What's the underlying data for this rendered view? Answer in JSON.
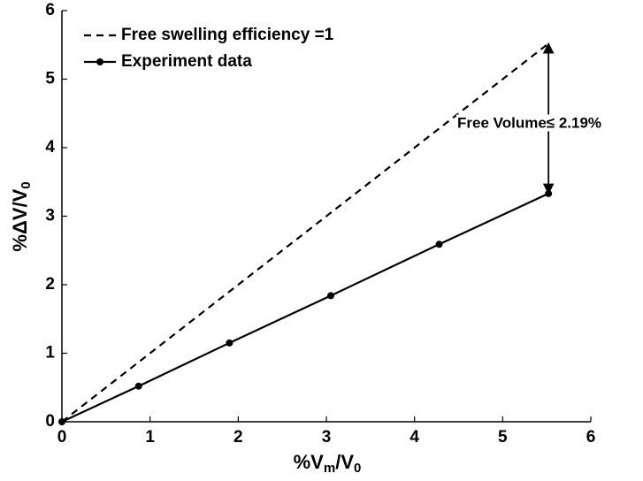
{
  "chart_data": {
    "type": "line",
    "xlabel": [
      "%V",
      "m",
      "/V",
      "0"
    ],
    "ylabel": [
      "%ΔV/V",
      "0"
    ],
    "xlim": [
      0,
      6
    ],
    "ylim": [
      0,
      6
    ],
    "xticks": [
      0,
      1,
      2,
      3,
      4,
      5,
      6
    ],
    "yticks": [
      0,
      1,
      2,
      3,
      4,
      5,
      6
    ],
    "legend": "upper left",
    "series": [
      {
        "name": "Free swelling efficiency =1",
        "color": "#000000",
        "style": "dashed",
        "marker": false,
        "x": [
          0,
          5.52
        ],
        "values": [
          0,
          5.52
        ]
      },
      {
        "name": "Experiment data",
        "color": "#000000",
        "style": "solid",
        "marker": true,
        "x": [
          0,
          0.87,
          1.9,
          3.05,
          4.28,
          5.52
        ],
        "values": [
          0,
          0.52,
          1.15,
          1.84,
          2.59,
          3.33
        ]
      }
    ],
    "annotation": {
      "text": "Free Volume≤ 2.19%",
      "x": 5.52,
      "y": [
        3.33,
        5.52
      ]
    }
  }
}
